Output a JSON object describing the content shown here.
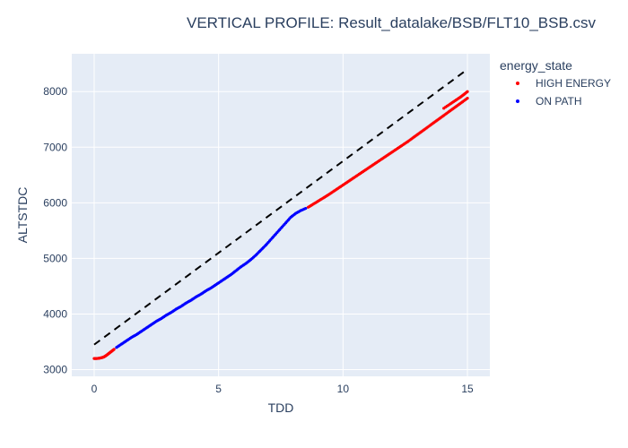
{
  "chart_data": {
    "type": "scatter",
    "title": "VERTICAL PROFILE: Result_datalake/BSB/FLT10_BSB.csv",
    "xlabel": "TDD",
    "ylabel": "ALTSTDC",
    "xlim": [
      -0.9,
      15.9
    ],
    "ylim": [
      2880,
      8680
    ],
    "xticks": [
      0,
      5,
      10,
      15
    ],
    "yticks": [
      3000,
      4000,
      5000,
      6000,
      7000,
      8000
    ],
    "grid": true,
    "legend": {
      "title": "energy_state",
      "position": "top-right"
    },
    "colors": {
      "high": "#ff0000",
      "onpath": "#0000ff",
      "reference": "#000000",
      "plot_bg": "#e5ecf6"
    },
    "series": [
      {
        "name": "HIGH ENERGY",
        "color": "#ff0000",
        "segments": [
          {
            "x": [
              0.0,
              0.1,
              0.2,
              0.3,
              0.4,
              0.5,
              0.6,
              0.7,
              0.8
            ],
            "y": [
              3200,
              3200,
              3205,
              3215,
              3230,
              3260,
              3295,
              3330,
              3365
            ]
          },
          {
            "x": [
              8.6,
              8.8,
              9.0,
              9.2,
              9.4,
              9.6,
              9.8,
              10.0,
              10.2,
              10.4,
              10.6,
              10.8,
              11.0,
              11.2,
              11.4,
              11.6,
              11.8,
              12.0,
              12.2,
              12.4,
              12.6,
              12.8,
              13.0,
              13.2,
              13.4,
              13.6,
              13.8,
              14.0,
              14.2,
              14.4,
              14.6,
              14.8,
              15.0
            ],
            "y": [
              5920,
              5975,
              6030,
              6085,
              6140,
              6200,
              6260,
              6320,
              6380,
              6440,
              6500,
              6560,
              6620,
              6680,
              6740,
              6800,
              6860,
              6920,
              6980,
              7040,
              7100,
              7165,
              7230,
              7295,
              7360,
              7425,
              7490,
              7555,
              7620,
              7685,
              7750,
              7815,
              7880
            ]
          },
          {
            "x": [
              14.05,
              14.3,
              14.5,
              14.7,
              14.85,
              15.0
            ],
            "y": [
              7700,
              7775,
              7835,
              7895,
              7945,
              8000
            ]
          }
        ]
      },
      {
        "name": "ON PATH",
        "color": "#0000ff",
        "segments": [
          {
            "x": [
              0.9,
              1.1,
              1.3,
              1.5,
              1.7,
              1.9,
              2.1,
              2.3,
              2.5,
              2.7,
              2.9,
              3.1,
              3.3,
              3.5,
              3.7,
              3.9,
              4.1,
              4.3,
              4.5,
              4.7,
              4.9,
              5.1,
              5.3,
              5.5,
              5.7,
              5.9,
              6.1,
              6.3,
              6.5,
              6.7,
              6.9,
              7.1,
              7.3,
              7.5,
              7.7,
              7.9,
              8.1,
              8.3,
              8.5
            ],
            "y": [
              3400,
              3460,
              3520,
              3580,
              3630,
              3690,
              3750,
              3810,
              3870,
              3920,
              3980,
              4030,
              4090,
              4140,
              4200,
              4250,
              4310,
              4360,
              4420,
              4470,
              4530,
              4590,
              4650,
              4710,
              4780,
              4850,
              4910,
              4980,
              5060,
              5150,
              5240,
              5340,
              5440,
              5540,
              5640,
              5740,
              5810,
              5860,
              5900
            ]
          }
        ]
      }
    ],
    "reference_line": {
      "style": "dashed",
      "x": [
        0,
        15
      ],
      "y": [
        3450,
        8400
      ]
    }
  }
}
